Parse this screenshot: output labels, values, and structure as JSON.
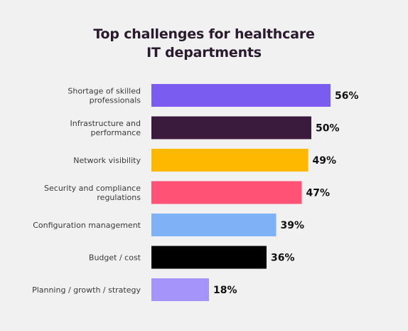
{
  "chart_data": {
    "type": "bar",
    "orientation": "horizontal",
    "title_lines": [
      "Top challenges for healthcare",
      "IT departments"
    ],
    "categories": [
      [
        "Shortage of skilled",
        "professionals"
      ],
      [
        "Infrastructure and",
        "performance"
      ],
      [
        "Network visibility"
      ],
      [
        "Security and compliance",
        "regulations"
      ],
      [
        "Configuration management"
      ],
      [
        "Budget / cost"
      ],
      [
        "Planning / growth / strategy"
      ]
    ],
    "values": [
      56,
      50,
      49,
      47,
      39,
      36,
      18
    ],
    "value_labels": [
      "56%",
      "50%",
      "49%",
      "47%",
      "39%",
      "36%",
      "18%"
    ],
    "colors": [
      "#7b5cf0",
      "#3a1b3e",
      "#ffb800",
      "#ff5274",
      "#7eb1f6",
      "#000000",
      "#a594f9"
    ],
    "xlim": [
      0,
      100
    ],
    "grid": false,
    "legend": "none"
  }
}
